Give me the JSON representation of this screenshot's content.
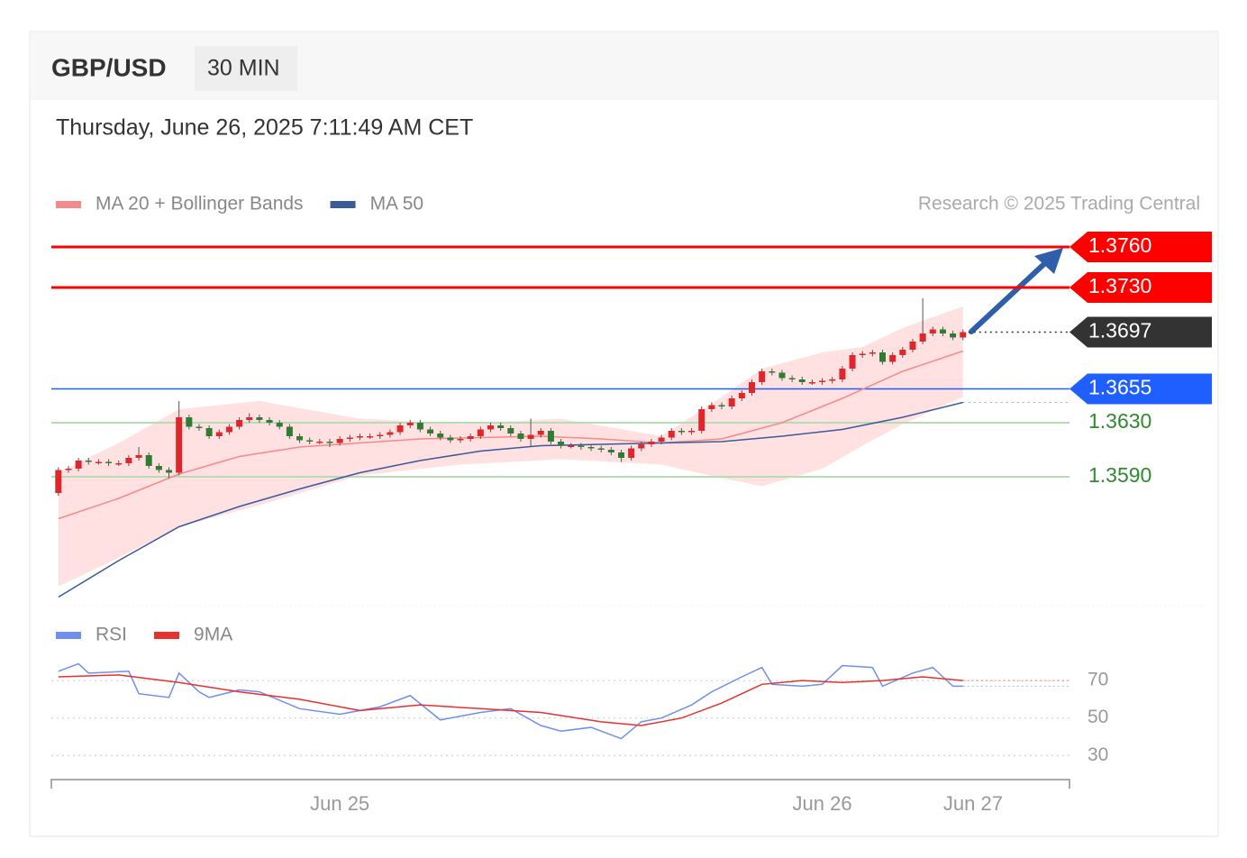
{
  "chart_data": [
    {
      "type": "candlestick",
      "title": "GBP/USD",
      "subtitle": "30 MIN",
      "date": "Thursday, June 26, 2025 7:11:49 AM CET",
      "credit": "Research © 2025 Trading Central",
      "xlim": [
        -0.7,
        100.6
      ],
      "ylim": [
        1.3496,
        1.3776
      ],
      "up_color": "#e0262b",
      "down_color": "#2e7d32",
      "open": [
        1.3578,
        1.3595,
        1.3596,
        1.3602,
        1.3601,
        1.3601,
        1.36,
        1.36,
        1.3604,
        1.3606,
        1.3598,
        1.3595,
        1.3593,
        1.3634,
        1.3627,
        1.3626,
        1.362,
        1.3623,
        1.3627,
        1.3632,
        1.3634,
        1.3632,
        1.363,
        1.3627,
        1.362,
        1.3617,
        1.3616,
        1.3616,
        1.3615,
        1.3618,
        1.3619,
        1.362,
        1.362,
        1.3621,
        1.3623,
        1.3628,
        1.363,
        1.3625,
        1.3622,
        1.3619,
        1.3617,
        1.3618,
        1.362,
        1.3625,
        1.3628,
        1.3626,
        1.3622,
        1.3618,
        1.3621,
        1.3624,
        1.3616,
        1.3613,
        1.3613,
        1.3612,
        1.3611,
        1.361,
        1.3608,
        1.3604,
        1.3611,
        1.3614,
        1.3616,
        1.3619,
        1.3624,
        1.3623,
        1.3624,
        1.364,
        1.3643,
        1.3642,
        1.3648,
        1.3652,
        1.366,
        1.3668,
        1.3667,
        1.3663,
        1.3662,
        1.366,
        1.366,
        1.3661,
        1.3662,
        1.367,
        1.368,
        1.3681,
        1.3682,
        1.3675,
        1.368,
        1.3684,
        1.369,
        1.3696,
        1.3699,
        1.3696,
        1.3693
      ],
      "high": [
        1.3597,
        1.3598,
        1.3604,
        1.3604,
        1.3603,
        1.3603,
        1.3602,
        1.3606,
        1.3612,
        1.3608,
        1.36,
        1.3597,
        1.3646,
        1.3636,
        1.3629,
        1.3628,
        1.3625,
        1.3629,
        1.3634,
        1.3637,
        1.3636,
        1.3634,
        1.3632,
        1.3629,
        1.3622,
        1.3619,
        1.3618,
        1.3618,
        1.362,
        1.3621,
        1.3622,
        1.3622,
        1.3623,
        1.3625,
        1.363,
        1.3632,
        1.3632,
        1.3627,
        1.3624,
        1.3621,
        1.362,
        1.3622,
        1.3627,
        1.363,
        1.363,
        1.3628,
        1.3624,
        1.3633,
        1.3626,
        1.3626,
        1.3618,
        1.3615,
        1.3615,
        1.3614,
        1.3613,
        1.3612,
        1.361,
        1.3613,
        1.3616,
        1.3618,
        1.3621,
        1.3626,
        1.3626,
        1.3626,
        1.3642,
        1.3645,
        1.3645,
        1.365,
        1.3654,
        1.3662,
        1.367,
        1.367,
        1.3669,
        1.3665,
        1.3664,
        1.3662,
        1.3663,
        1.3664,
        1.3672,
        1.3682,
        1.3683,
        1.3684,
        1.3684,
        1.3682,
        1.3686,
        1.3692,
        1.3722,
        1.3701,
        1.3701,
        1.3698,
        1.3699
      ],
      "low": [
        1.3576,
        1.3593,
        1.3594,
        1.3599,
        1.3599,
        1.3598,
        1.3598,
        1.3598,
        1.3602,
        1.3596,
        1.3593,
        1.3589,
        1.3591,
        1.3625,
        1.3624,
        1.3618,
        1.3618,
        1.3621,
        1.3625,
        1.363,
        1.363,
        1.3628,
        1.3625,
        1.3618,
        1.3615,
        1.3614,
        1.3614,
        1.3612,
        1.3613,
        1.3616,
        1.3617,
        1.3618,
        1.3618,
        1.3619,
        1.3621,
        1.3626,
        1.3623,
        1.362,
        1.3617,
        1.3615,
        1.3615,
        1.3616,
        1.3618,
        1.3623,
        1.3624,
        1.362,
        1.3616,
        1.3612,
        1.3619,
        1.3614,
        1.3611,
        1.3611,
        1.361,
        1.3609,
        1.3608,
        1.3606,
        1.3601,
        1.3602,
        1.3609,
        1.3612,
        1.3614,
        1.3617,
        1.3621,
        1.3621,
        1.3622,
        1.3638,
        1.364,
        1.364,
        1.3646,
        1.365,
        1.3658,
        1.3665,
        1.3661,
        1.366,
        1.3658,
        1.3658,
        1.3658,
        1.3659,
        1.366,
        1.3668,
        1.3678,
        1.3679,
        1.3673,
        1.3673,
        1.3678,
        1.3682,
        1.3688,
        1.3694,
        1.3694,
        1.3691,
        1.3691
      ],
      "close": [
        1.3595,
        1.3596,
        1.3602,
        1.3601,
        1.3601,
        1.36,
        1.36,
        1.3604,
        1.3606,
        1.3598,
        1.3595,
        1.3593,
        1.3634,
        1.3627,
        1.3626,
        1.362,
        1.3623,
        1.3627,
        1.3632,
        1.3634,
        1.3632,
        1.363,
        1.3627,
        1.362,
        1.3617,
        1.3616,
        1.3616,
        1.3615,
        1.3618,
        1.3619,
        1.362,
        1.362,
        1.3621,
        1.3623,
        1.3628,
        1.363,
        1.3625,
        1.3622,
        1.3619,
        1.3617,
        1.3618,
        1.362,
        1.3625,
        1.3628,
        1.3626,
        1.3622,
        1.3618,
        1.3621,
        1.3624,
        1.3616,
        1.3613,
        1.3613,
        1.3612,
        1.3611,
        1.361,
        1.3608,
        1.3604,
        1.3611,
        1.3614,
        1.3616,
        1.3619,
        1.3624,
        1.3623,
        1.3624,
        1.364,
        1.3643,
        1.3642,
        1.3648,
        1.3652,
        1.366,
        1.3668,
        1.3667,
        1.3663,
        1.3662,
        1.366,
        1.366,
        1.3661,
        1.3662,
        1.367,
        1.368,
        1.3681,
        1.3682,
        1.3675,
        1.368,
        1.3684,
        1.369,
        1.3696,
        1.3699,
        1.3696,
        1.3693,
        1.3697
      ],
      "bands": {
        "color": "#ffe1e1",
        "x": [
          0,
          6,
          12,
          20,
          30,
          40,
          50,
          60,
          66,
          70,
          76,
          80,
          84,
          90
        ],
        "upper": [
          1.3593,
          1.3615,
          1.364,
          1.3646,
          1.3633,
          1.3629,
          1.3633,
          1.362,
          1.3649,
          1.367,
          1.3682,
          1.3686,
          1.37,
          1.3716
        ],
        "lower": [
          1.3509,
          1.353,
          1.3553,
          1.3569,
          1.3591,
          1.3599,
          1.3603,
          1.3599,
          1.3589,
          1.3583,
          1.3596,
          1.3613,
          1.3629,
          1.3649
        ]
      },
      "series": [
        {
          "name": "MA 20 + Bollinger Bands",
          "color": "#f48a8a",
          "x": [
            0,
            6,
            12,
            18,
            24,
            30,
            36,
            42,
            48,
            54,
            60,
            66,
            72,
            78,
            84,
            90
          ],
          "values": [
            1.3559,
            1.3574,
            1.3592,
            1.3605,
            1.3612,
            1.3615,
            1.3618,
            1.3619,
            1.362,
            1.3618,
            1.3615,
            1.3618,
            1.363,
            1.3648,
            1.3668,
            1.3683
          ]
        },
        {
          "name": "MA 50",
          "color": "#3a5a9a",
          "x": [
            0,
            6,
            12,
            18,
            24,
            30,
            36,
            42,
            48,
            54,
            60,
            66,
            72,
            78,
            84,
            90
          ],
          "values": [
            1.3501,
            1.3528,
            1.3553,
            1.3568,
            1.3581,
            1.3593,
            1.3602,
            1.3609,
            1.3613,
            1.3614,
            1.3615,
            1.3616,
            1.362,
            1.3625,
            1.3634,
            1.3645
          ]
        }
      ],
      "levels": [
        {
          "value": 1.376,
          "label": "1.3760",
          "color": "#ff0000",
          "style": "tag"
        },
        {
          "value": 1.373,
          "label": "1.3730",
          "color": "#ff0000",
          "style": "tag"
        },
        {
          "value": 1.3697,
          "label": "1.3697",
          "color": "#333333",
          "style": "current"
        },
        {
          "value": 1.3655,
          "label": "1.3655",
          "color": "#1f5fff",
          "style": "tag"
        },
        {
          "value": 1.363,
          "label": "1.3630",
          "color": "#2e8b2e",
          "style": "plain"
        },
        {
          "value": 1.359,
          "label": "1.3590",
          "color": "#2e8b2e",
          "style": "plain"
        }
      ]
    },
    {
      "type": "line",
      "xlim": [
        -0.7,
        100.6
      ],
      "ylim": [
        20,
        85
      ],
      "yticks": [
        30,
        50,
        70
      ],
      "xticks": [
        {
          "value": 28,
          "label": "Jun 25"
        },
        {
          "value": 76,
          "label": "Jun 26"
        },
        {
          "value": 91,
          "label": "Jun 27"
        }
      ],
      "series": [
        {
          "name": "RSI",
          "color": "#6f8ff0",
          "x": [
            0,
            2,
            3,
            7,
            8,
            11,
            12,
            14,
            15,
            18,
            20,
            24,
            28,
            32,
            35,
            38,
            40,
            42,
            45,
            48,
            50,
            53,
            56,
            58,
            60,
            63,
            65,
            68,
            70,
            71,
            74,
            76,
            78,
            81,
            82,
            85,
            87,
            89,
            90
          ],
          "values": [
            75,
            79,
            74,
            75,
            63,
            61,
            74,
            64,
            61,
            65,
            64,
            55,
            52,
            56,
            62,
            49,
            51,
            53,
            55,
            46,
            43,
            45,
            39,
            48,
            50,
            57,
            64,
            72,
            77,
            68,
            67,
            68,
            78,
            77,
            67,
            74,
            77,
            67,
            67
          ]
        },
        {
          "name": "9MA",
          "color": "#e8302e",
          "x": [
            0,
            6,
            12,
            18,
            24,
            30,
            36,
            42,
            48,
            54,
            58,
            62,
            66,
            70,
            74,
            78,
            82,
            86,
            90
          ],
          "values": [
            72,
            73,
            69,
            64,
            60,
            54,
            57,
            55,
            53,
            48,
            46,
            50,
            58,
            68,
            70,
            69,
            70,
            72,
            70
          ]
        }
      ]
    }
  ]
}
